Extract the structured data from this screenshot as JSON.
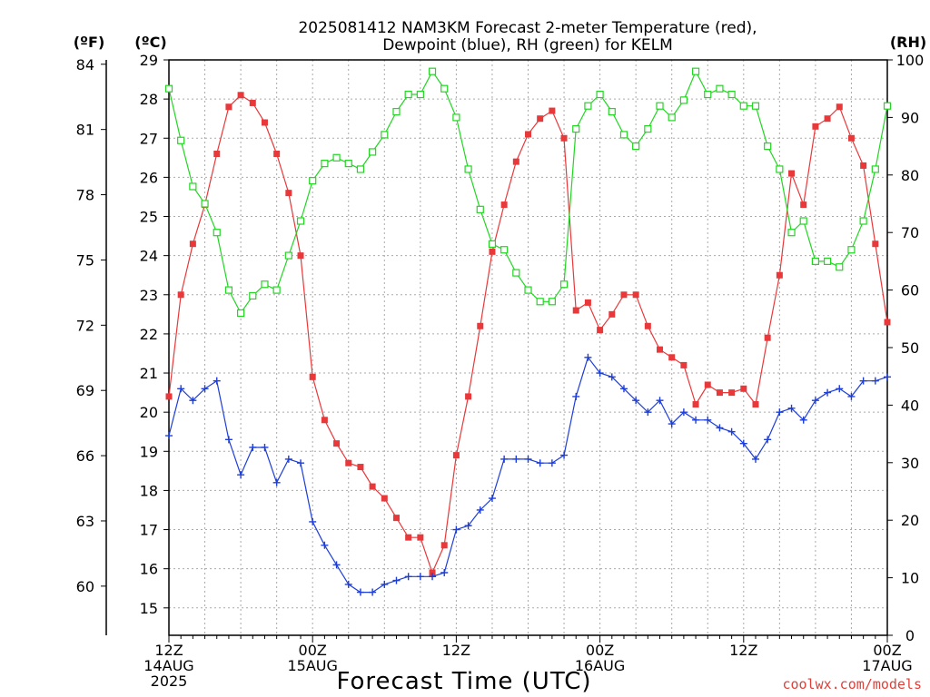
{
  "chart_data": {
    "type": "line",
    "title_lines": [
      "2025081412 NAM3KM Forecast 2-meter Temperature (red),",
      "Dewpoint (blue), RH (green) for KELM"
    ],
    "xlabel": "Forecast Time (UTC)",
    "credit": "coolwx.com/models",
    "units": {
      "f": "(ºF)",
      "c": "(ºC)",
      "rh": "(RH)"
    },
    "forecast_hours_range": [
      0,
      60
    ],
    "x_ticks": [
      {
        "hour": 0,
        "lines": [
          "12Z",
          "14AUG",
          "2025"
        ]
      },
      {
        "hour": 12,
        "lines": [
          "00Z",
          "15AUG"
        ]
      },
      {
        "hour": 24,
        "lines": [
          "12Z"
        ]
      },
      {
        "hour": 36,
        "lines": [
          "00Z",
          "16AUG"
        ]
      },
      {
        "hour": 48,
        "lines": [
          "12Z"
        ]
      },
      {
        "hour": 60,
        "lines": [
          "00Z",
          "17AUG"
        ]
      }
    ],
    "y_left_c": {
      "min": 14.3,
      "max": 29.0,
      "ticks": [
        15,
        16,
        17,
        18,
        19,
        20,
        21,
        22,
        23,
        24,
        25,
        26,
        27,
        28,
        29
      ]
    },
    "y_left_f": {
      "ticks": [
        60,
        63,
        66,
        69,
        72,
        75,
        78,
        81,
        84
      ]
    },
    "y_right_rh": {
      "min": 0,
      "max": 100,
      "ticks": [
        0,
        10,
        20,
        30,
        40,
        50,
        60,
        70,
        80,
        90,
        100
      ]
    },
    "grid": true,
    "series": [
      {
        "name": "Temperature",
        "color": "#e8383a",
        "marker": "filled-square",
        "axis": "c",
        "x": [
          0,
          1,
          2,
          3,
          4,
          5,
          6,
          7,
          8,
          9,
          10,
          11,
          12,
          13,
          14,
          15,
          16,
          17,
          18,
          19,
          20,
          21,
          22,
          23,
          24,
          25,
          26,
          27,
          28,
          29,
          30,
          31,
          32,
          33,
          34,
          35,
          36,
          37,
          38,
          39,
          40,
          41,
          42,
          43,
          44,
          45,
          46,
          47,
          48,
          49,
          50,
          51,
          52,
          53,
          54,
          55,
          56,
          57,
          58,
          59,
          60
        ],
        "values": [
          20.4,
          23.0,
          24.3,
          25.3,
          26.6,
          27.8,
          28.1,
          27.9,
          27.4,
          26.6,
          25.6,
          24.0,
          20.9,
          19.8,
          19.2,
          18.7,
          18.6,
          18.1,
          17.8,
          17.3,
          16.8,
          16.8,
          15.9,
          16.6,
          18.9,
          20.4,
          22.2,
          24.1,
          25.3,
          26.4,
          27.1,
          27.5,
          27.7,
          27.0,
          22.6,
          22.8,
          22.1,
          22.5,
          23.0,
          23.0,
          22.2,
          21.6,
          21.4,
          21.2,
          20.2,
          20.7,
          20.5,
          20.5,
          20.6,
          20.2,
          21.9,
          23.5,
          26.1,
          25.3,
          27.3,
          27.5,
          27.8,
          27.0,
          26.3,
          24.3,
          22.3
        ]
      },
      {
        "name": "Dewpoint",
        "color": "#1e3ed8",
        "marker": "plus",
        "axis": "c",
        "x": [
          0,
          1,
          2,
          3,
          4,
          5,
          6,
          7,
          8,
          9,
          10,
          11,
          12,
          13,
          14,
          15,
          16,
          17,
          18,
          19,
          20,
          21,
          22,
          23,
          24,
          25,
          26,
          27,
          28,
          29,
          30,
          31,
          32,
          33,
          34,
          35,
          36,
          37,
          38,
          39,
          40,
          41,
          42,
          43,
          44,
          45,
          46,
          47,
          48,
          49,
          50,
          51,
          52,
          53,
          54,
          55,
          56,
          57,
          58,
          59,
          60
        ],
        "values": [
          19.4,
          20.6,
          20.3,
          20.6,
          20.8,
          19.3,
          18.4,
          19.1,
          19.1,
          18.2,
          18.8,
          18.7,
          17.2,
          16.6,
          16.1,
          15.6,
          15.4,
          15.4,
          15.6,
          15.7,
          15.8,
          15.8,
          15.8,
          15.9,
          17.0,
          17.1,
          17.5,
          17.8,
          18.8,
          18.8,
          18.8,
          18.7,
          18.7,
          18.9,
          20.4,
          21.4,
          21.0,
          20.9,
          20.6,
          20.3,
          20.0,
          20.3,
          19.7,
          20.0,
          19.8,
          19.8,
          19.6,
          19.5,
          19.2,
          18.8,
          19.3,
          20.0,
          20.1,
          19.8,
          20.3,
          20.5,
          20.6,
          20.4,
          20.8,
          20.8,
          20.9
        ]
      },
      {
        "name": "RH",
        "color": "#22d622",
        "marker": "open-square",
        "axis": "rh",
        "x": [
          0,
          1,
          2,
          3,
          4,
          5,
          6,
          7,
          8,
          9,
          10,
          11,
          12,
          13,
          14,
          15,
          16,
          17,
          18,
          19,
          20,
          21,
          22,
          23,
          24,
          25,
          26,
          27,
          28,
          29,
          30,
          31,
          32,
          33,
          34,
          35,
          36,
          37,
          38,
          39,
          40,
          41,
          42,
          43,
          44,
          45,
          46,
          47,
          48,
          49,
          50,
          51,
          52,
          53,
          54,
          55,
          56,
          57,
          58,
          59,
          60
        ],
        "values": [
          95,
          86,
          78,
          75,
          70,
          60,
          56,
          59,
          61,
          60,
          66,
          72,
          79,
          82,
          83,
          82,
          81,
          84,
          87,
          91,
          94,
          94,
          98,
          95,
          90,
          81,
          74,
          68,
          67,
          63,
          60,
          58,
          58,
          61,
          88,
          92,
          94,
          91,
          87,
          85,
          88,
          92,
          90,
          93,
          98,
          94,
          95,
          94,
          92,
          92,
          85,
          81,
          70,
          72,
          65,
          65,
          64,
          67,
          72,
          81,
          92
        ]
      }
    ]
  }
}
